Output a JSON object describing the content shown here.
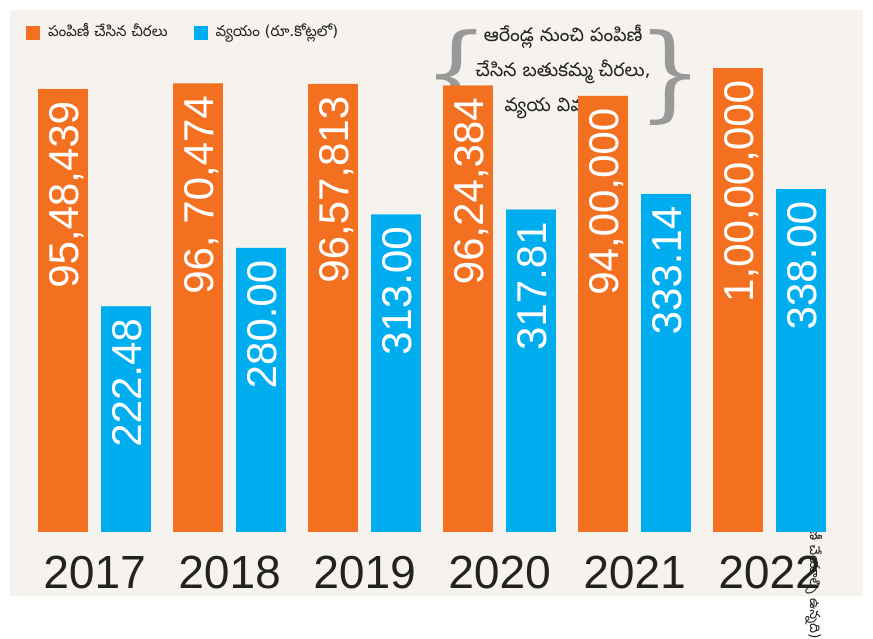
{
  "colors": {
    "saris": "#f37021",
    "cost": "#00aeef",
    "background": "#f6f3ee"
  },
  "legend": {
    "saris_label": "పంపిణీ చేసిన చీరలు",
    "cost_label": "వ్యయం (రూ.కోట్లలో)"
  },
  "note": {
    "line1": "ఆరేండ్ల నుంచి పంపిణీ",
    "line2": "చేసిన బతుకమ్మ చీరలు,",
    "line3": "వ్యయ వివరాలు"
  },
  "side_note": "(పంపిణీ చేయాల్సి ఉన్నది)",
  "chart_data": {
    "type": "bar",
    "categories": [
      "2017",
      "2018",
      "2019",
      "2020",
      "2021",
      "2022"
    ],
    "series": [
      {
        "name": "పంపిణీ చేసిన చీరలు",
        "values": [
          9548439,
          9670474,
          9657813,
          9624384,
          9400000,
          10000000
        ],
        "labels": [
          "95,48,439",
          "96, 70,474",
          "96,57,813",
          "96,24,384",
          "94,00,000",
          "1,00,00,000"
        ]
      },
      {
        "name": "వ్యయం (రూ.కోట్లలో)",
        "values": [
          222.48,
          280.0,
          313.0,
          317.81,
          333.14,
          338.0
        ],
        "labels": [
          "222.48",
          "280.00",
          "313.00",
          "317.81",
          "333.14",
          "338.00"
        ]
      }
    ]
  }
}
